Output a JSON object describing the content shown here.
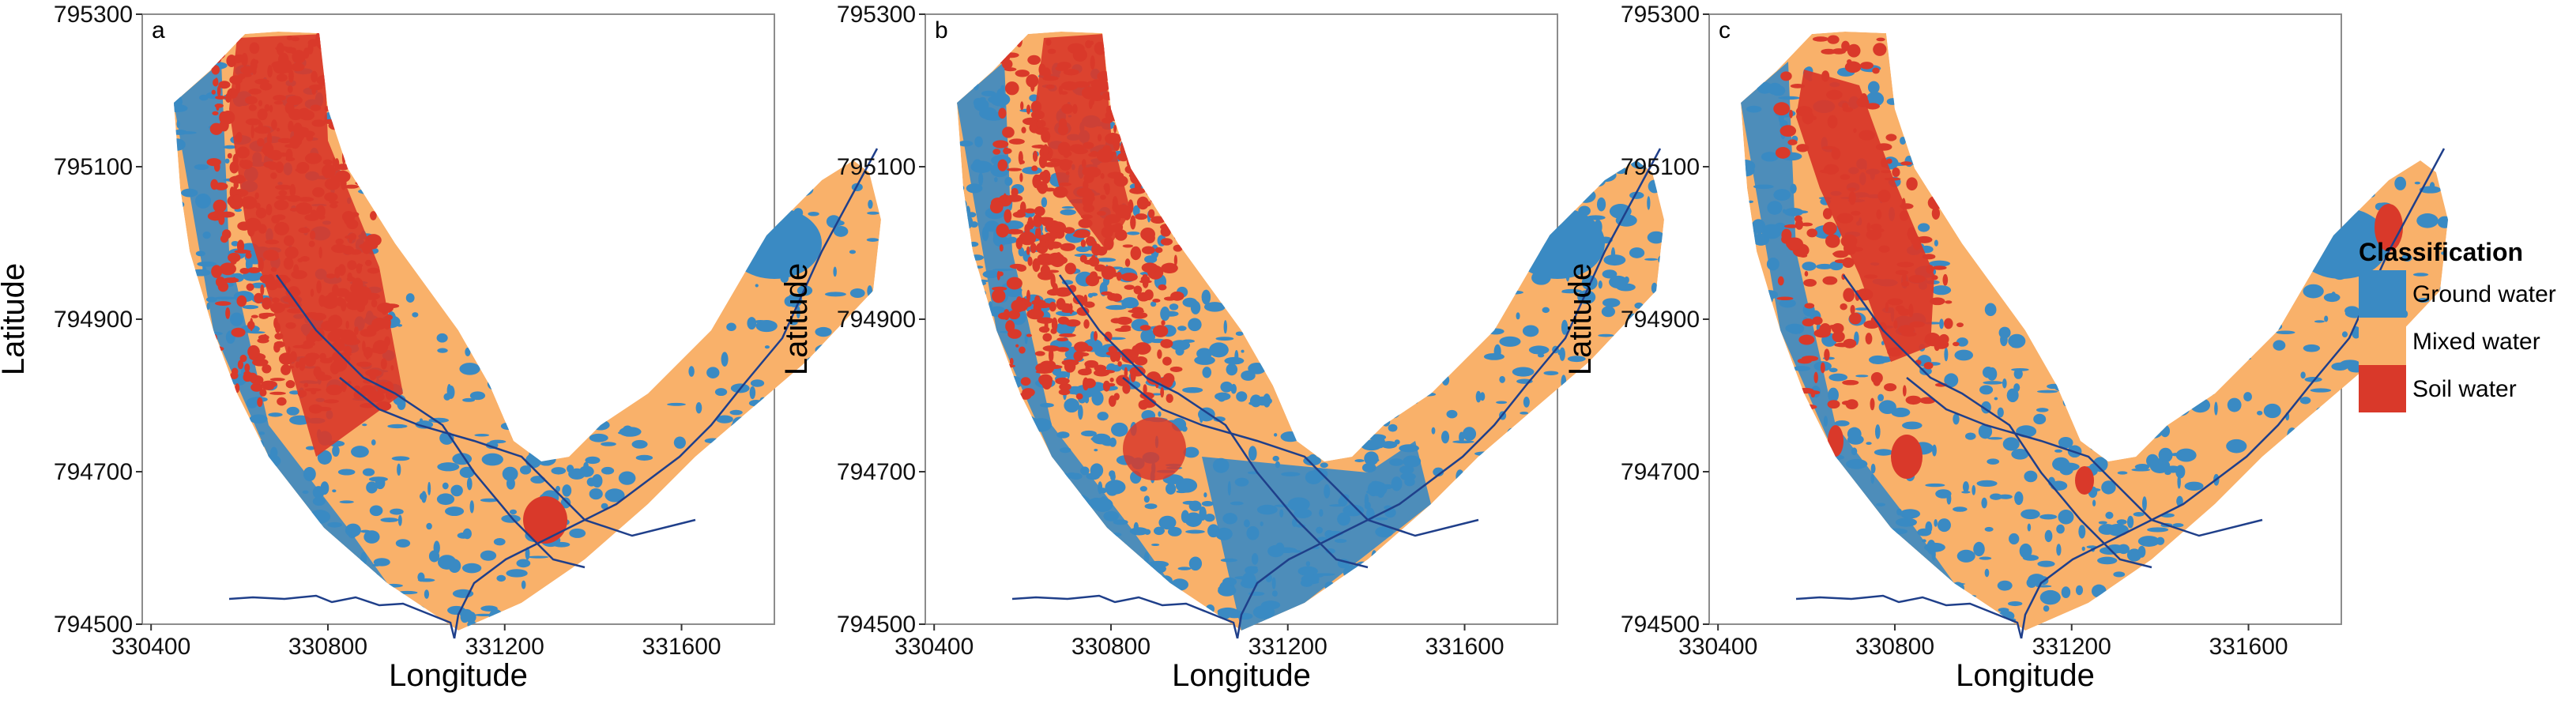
{
  "colors": {
    "ground": "#3A8AC3",
    "mixed": "#F9B16A",
    "soil": "#D9392A",
    "river": "#1F3F8A",
    "frame": "#8C8C8C"
  },
  "axes": {
    "xlabel": "Longitude",
    "ylabel": "Latitude",
    "xticks": [
      "330400",
      "330800",
      "331200",
      "331600"
    ],
    "yticks": [
      "794500",
      "794700",
      "794900",
      "795100",
      "795300"
    ],
    "xlim": [
      330380,
      331810
    ],
    "ylim": [
      794500,
      795300
    ]
  },
  "panels": [
    {
      "label": "a",
      "dominant_ground_water": false
    },
    {
      "label": "b",
      "dominant_ground_water": true
    },
    {
      "label": "c",
      "dominant_ground_water": false
    }
  ],
  "legend": {
    "title": "Classification",
    "items": [
      {
        "label": "Ground water",
        "color_key": "ground"
      },
      {
        "label": "Mixed water",
        "color_key": "mixed"
      },
      {
        "label": "Soil water",
        "color_key": "soil"
      }
    ]
  }
}
